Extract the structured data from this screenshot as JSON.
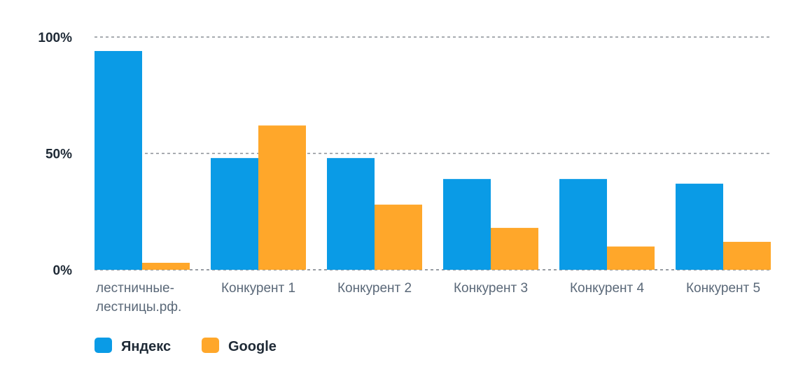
{
  "chart_data": {
    "type": "bar",
    "categories": [
      [
        "лестничные-",
        "лестницы.рф."
      ],
      [
        "Конкурент 1"
      ],
      [
        "Конкурент 2"
      ],
      [
        "Конкурент 3"
      ],
      [
        "Конкурент 4"
      ],
      [
        "Конкурент 5"
      ]
    ],
    "series": [
      {
        "name": "Яндекс",
        "color": "#0a9be6",
        "values": [
          94,
          48,
          48,
          39,
          39,
          37
        ]
      },
      {
        "name": "Google",
        "color": "#ffa72a",
        "values": [
          3,
          62,
          28,
          18,
          10,
          12
        ]
      }
    ],
    "ylim": [
      0,
      100
    ],
    "yticks": [
      {
        "value": 0,
        "label": "0%"
      },
      {
        "value": 50,
        "label": "50%"
      },
      {
        "value": 100,
        "label": "100%"
      }
    ],
    "grid": true,
    "legend": "bottom-left",
    "title": "",
    "xlabel": "",
    "ylabel": ""
  }
}
